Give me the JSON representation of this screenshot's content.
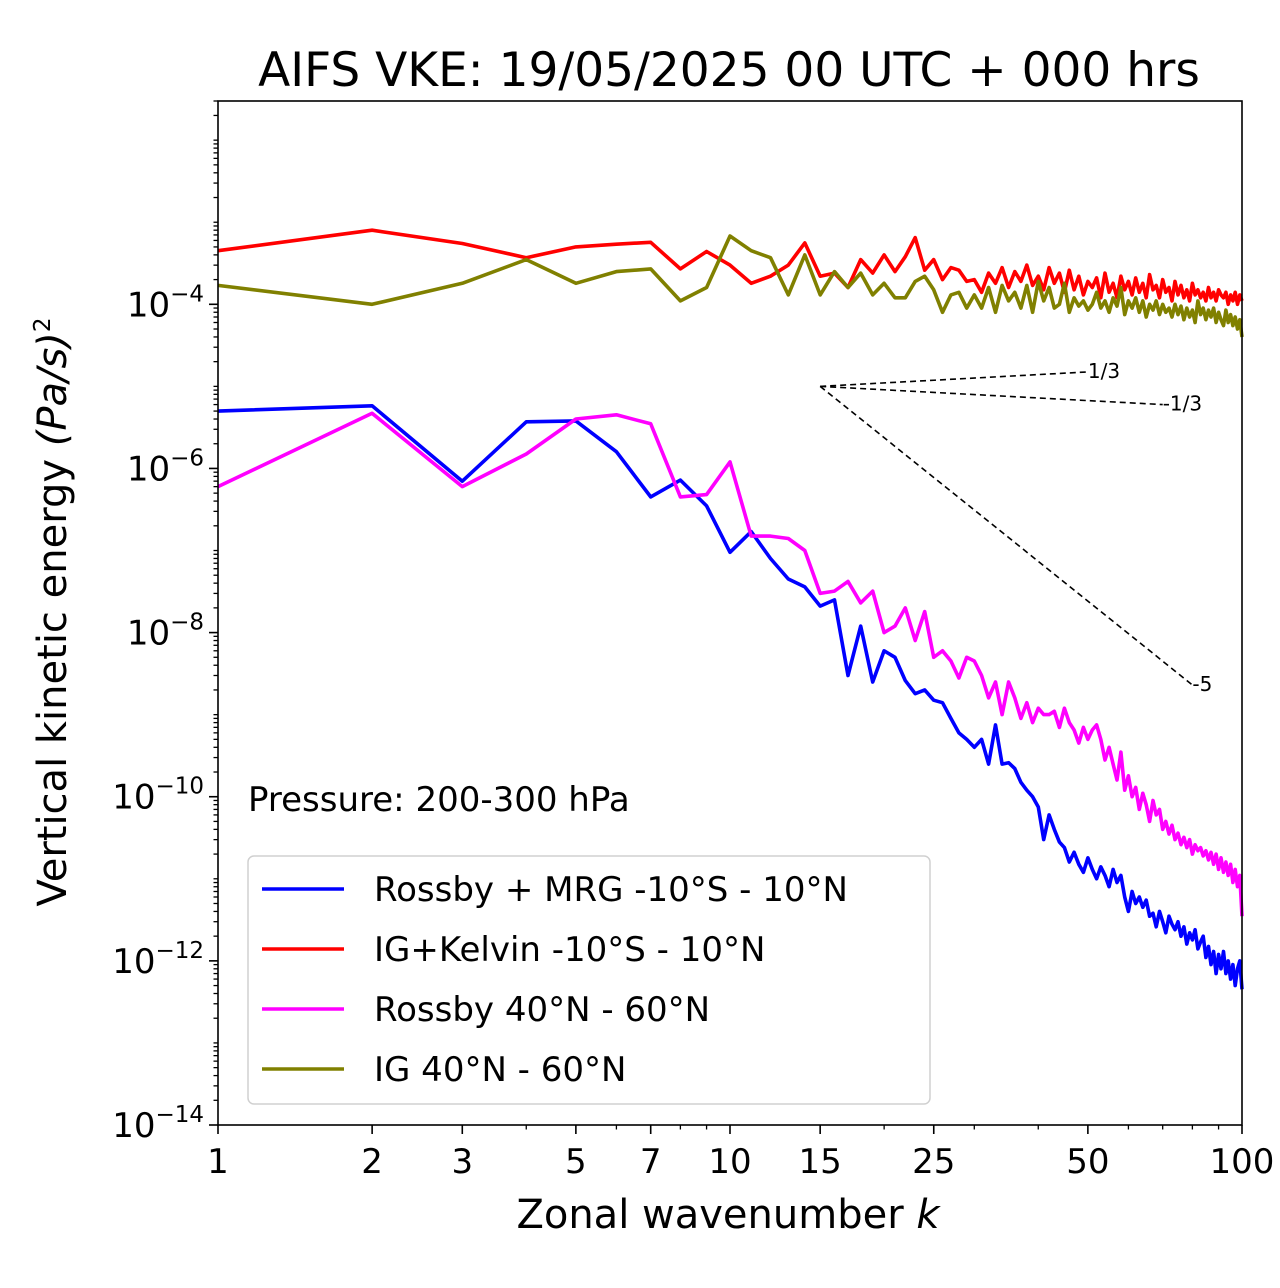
{
  "chart_data": {
    "type": "line",
    "title": "AIFS VKE: 19/05/2025 00 UTC + 000 hrs",
    "xlabel": "Zonal wavenumber",
    "xlabel_var": "k",
    "ylabel": "Vertical kinetic energy",
    "ylabel_unit": "(Pa/s)",
    "ylabel_exp": "2",
    "xscale": "log",
    "yscale": "log",
    "xlim": [
      1,
      100
    ],
    "ylim": [
      1e-14,
      0.03
    ],
    "xticks": [
      1,
      2,
      3,
      5,
      7,
      10,
      15,
      25,
      50,
      100
    ],
    "yticks": [
      {
        "base": "10",
        "exp": "−14",
        "value": 1e-14
      },
      {
        "base": "10",
        "exp": "−12",
        "value": 1e-12
      },
      {
        "base": "10",
        "exp": "−10",
        "value": 1e-10
      },
      {
        "base": "10",
        "exp": "−8",
        "value": 1e-08
      },
      {
        "base": "10",
        "exp": "−6",
        "value": 1e-06
      },
      {
        "base": "10",
        "exp": "−4",
        "value": 0.0001
      }
    ],
    "annotation": "Pressure: 200-300 hPa",
    "legend_position": "lower-left",
    "series": [
      {
        "name": "Rossby + MRG -10°S - 10°N",
        "color": "#0000ff",
        "x": [
          1,
          2,
          3,
          4,
          5,
          6,
          7,
          8,
          9,
          10,
          11,
          12,
          13,
          14,
          15,
          16,
          17,
          18,
          19,
          20,
          21,
          22,
          23,
          24,
          25,
          26,
          27,
          28,
          29,
          30,
          31,
          32,
          33,
          34,
          35,
          36,
          37,
          38,
          39,
          40,
          41,
          42,
          43,
          44,
          45,
          46,
          47,
          48,
          49,
          50,
          51,
          52,
          53,
          54,
          55,
          56,
          57,
          58,
          59,
          60,
          61,
          62,
          63,
          64,
          65,
          66,
          67,
          68,
          69,
          70,
          71,
          72,
          73,
          74,
          75,
          76,
          77,
          78,
          79,
          80,
          81,
          82,
          83,
          84,
          85,
          86,
          87,
          88,
          89,
          90,
          91,
          92,
          93,
          94,
          95,
          96,
          97,
          98,
          99,
          100
        ],
        "y": [
          5e-06,
          5.8e-06,
          7e-07,
          3.7e-06,
          3.8e-06,
          1.6e-06,
          4.5e-07,
          7.2e-07,
          3.5e-07,
          9.5e-08,
          1.7e-07,
          8e-08,
          4.5e-08,
          3.6e-08,
          2.1e-08,
          2.5e-08,
          3e-09,
          1.2e-08,
          2.5e-09,
          6e-09,
          5e-09,
          2.6e-09,
          1.8e-09,
          2e-09,
          1.5e-09,
          1.4e-09,
          9e-10,
          6e-10,
          5e-10,
          4e-10,
          5e-10,
          2.5e-10,
          7.5e-10,
          2.5e-10,
          2.6e-10,
          2.2e-10,
          1.5e-10,
          1.2e-10,
          1e-10,
          7.5e-11,
          3e-11,
          6e-11,
          4e-11,
          2.8e-11,
          2.4e-11,
          1.6e-11,
          2.1e-11,
          1.5e-11,
          1.2e-11,
          1.8e-11,
          1.3e-11,
          1e-11,
          1.4e-11,
          1.1e-11,
          8e-12,
          1.3e-11,
          9e-12,
          1.1e-11,
          6e-12,
          4e-12,
          7e-12,
          5e-12,
          6e-12,
          4.5e-12,
          5.5e-12,
          3.5e-12,
          3.8e-12,
          2.6e-12,
          4e-12,
          3e-12,
          2.2e-12,
          3.5e-12,
          2.8e-12,
          2.4e-12,
          3e-12,
          2e-12,
          2.6e-12,
          1.6e-12,
          2.2e-12,
          1.8e-12,
          2.4e-12,
          1.4e-12,
          1.7e-12,
          2e-12,
          1.1e-12,
          1.5e-12,
          9e-13,
          1.3e-12,
          7e-13,
          1.2e-12,
          8e-13,
          1.3e-12,
          7e-13,
          1e-12,
          6e-13,
          9e-13,
          5e-13,
          8e-13,
          1e-12,
          4.5e-13
        ]
      },
      {
        "name": "IG+Kelvin -10°S - 10°N",
        "color": "#ff0000",
        "x": [
          1,
          2,
          3,
          4,
          5,
          6,
          7,
          8,
          9,
          10,
          11,
          12,
          13,
          14,
          15,
          16,
          17,
          18,
          19,
          20,
          21,
          22,
          23,
          24,
          25,
          26,
          27,
          28,
          29,
          30,
          31,
          32,
          33,
          34,
          35,
          36,
          37,
          38,
          39,
          40,
          41,
          42,
          43,
          44,
          45,
          46,
          47,
          48,
          49,
          50,
          51,
          52,
          53,
          54,
          55,
          56,
          57,
          58,
          59,
          60,
          61,
          62,
          63,
          64,
          65,
          66,
          67,
          68,
          69,
          70,
          71,
          72,
          73,
          74,
          75,
          76,
          77,
          78,
          79,
          80,
          81,
          82,
          83,
          84,
          85,
          86,
          87,
          88,
          89,
          90,
          91,
          92,
          93,
          94,
          95,
          96,
          97,
          98,
          99,
          100
        ],
        "y": [
          0.00045,
          0.0008,
          0.00055,
          0.00037,
          0.0005,
          0.00054,
          0.00057,
          0.00027,
          0.00044,
          0.0003,
          0.00018,
          0.00022,
          0.0003,
          0.00056,
          0.00022,
          0.00024,
          0.00016,
          0.00035,
          0.00024,
          0.0004,
          0.00025,
          0.00038,
          0.00065,
          0.00026,
          0.00035,
          0.0002,
          0.00028,
          0.00026,
          0.00019,
          0.0002,
          0.00014,
          0.00024,
          0.00018,
          0.00028,
          0.00016,
          0.00025,
          0.00019,
          0.0003,
          0.00017,
          0.00022,
          0.00015,
          0.00028,
          0.00018,
          0.00024,
          0.00014,
          0.00026,
          0.00015,
          0.00022,
          0.00013,
          0.00019,
          0.00016,
          0.00021,
          0.00012,
          0.00024,
          0.00014,
          0.00018,
          0.00012,
          0.00022,
          0.00015,
          0.00019,
          0.00013,
          0.00021,
          0.00014,
          0.00018,
          0.00012,
          0.00023,
          0.00015,
          0.00017,
          0.00012,
          0.0002,
          0.00014,
          0.00016,
          0.00011,
          0.00019,
          0.00013,
          0.00017,
          0.00012,
          0.00015,
          0.00011,
          0.00018,
          0.00013,
          0.00015,
          0.00012,
          0.00014,
          0.00011,
          0.00016,
          0.00012,
          0.00014,
          0.00011,
          0.00015,
          0.00013,
          0.00012,
          0.00014,
          0.0001,
          0.00013,
          0.00011,
          0.00014,
          0.0001,
          0.00013,
          0.00011
        ]
      },
      {
        "name": "Rossby 40°N - 60°N",
        "color": "#ff00ff",
        "x": [
          1,
          2,
          3,
          4,
          5,
          6,
          7,
          8,
          9,
          10,
          11,
          12,
          13,
          14,
          15,
          16,
          17,
          18,
          19,
          20,
          21,
          22,
          23,
          24,
          25,
          26,
          27,
          28,
          29,
          30,
          31,
          32,
          33,
          34,
          35,
          36,
          37,
          38,
          39,
          40,
          41,
          42,
          43,
          44,
          45,
          46,
          47,
          48,
          49,
          50,
          51,
          52,
          53,
          54,
          55,
          56,
          57,
          58,
          59,
          60,
          61,
          62,
          63,
          64,
          65,
          66,
          67,
          68,
          69,
          70,
          71,
          72,
          73,
          74,
          75,
          76,
          77,
          78,
          79,
          80,
          81,
          82,
          83,
          84,
          85,
          86,
          87,
          88,
          89,
          90,
          91,
          92,
          93,
          94,
          95,
          96,
          97,
          98,
          99,
          100
        ],
        "y": [
          6e-07,
          4.7e-06,
          6e-07,
          1.5e-06,
          4e-06,
          4.5e-06,
          3.5e-06,
          4.5e-07,
          4.8e-07,
          1.2e-06,
          1.5e-07,
          1.5e-07,
          1.4e-07,
          1e-07,
          3e-08,
          3.2e-08,
          4.2e-08,
          2.3e-08,
          3.2e-08,
          1e-08,
          1.2e-08,
          2e-08,
          8e-09,
          1.8e-08,
          5e-09,
          6e-09,
          4.5e-09,
          2.8e-09,
          5e-09,
          4.5e-09,
          3e-09,
          1.6e-09,
          2.5e-09,
          1e-09,
          2.5e-09,
          1.6e-09,
          9e-10,
          1.4e-09,
          8e-10,
          1.2e-09,
          1e-09,
          1e-09,
          1.1e-09,
          7e-10,
          1.2e-09,
          8e-10,
          6.5e-10,
          4.5e-10,
          7e-10,
          5e-10,
          6.5e-10,
          7.5e-10,
          5e-10,
          2.8e-10,
          4e-10,
          2.5e-10,
          1.6e-10,
          3.5e-10,
          1.2e-10,
          1.8e-10,
          1e-10,
          1.3e-10,
          7e-11,
          1.1e-10,
          8e-11,
          5e-11,
          9e-11,
          6e-11,
          7e-11,
          4e-11,
          5e-11,
          3.5e-11,
          4.5e-11,
          3e-11,
          3.6e-11,
          2.6e-11,
          3.2e-11,
          2.4e-11,
          3e-11,
          2e-11,
          2.6e-11,
          2.2e-11,
          2.4e-11,
          1.9e-11,
          2.2e-11,
          1.7e-11,
          2.1e-11,
          1.5e-11,
          2e-11,
          1.3e-11,
          1.8e-11,
          1.2e-11,
          1.6e-11,
          1.1e-11,
          1.5e-11,
          9e-12,
          1.3e-11,
          8e-12,
          1.1e-11,
          3.5e-12
        ]
      },
      {
        "name": "IG 40°N - 60°N",
        "color": "#808000",
        "x": [
          1,
          2,
          3,
          4,
          5,
          6,
          7,
          8,
          9,
          10,
          11,
          12,
          13,
          14,
          15,
          16,
          17,
          18,
          19,
          20,
          21,
          22,
          23,
          24,
          25,
          26,
          27,
          28,
          29,
          30,
          31,
          32,
          33,
          34,
          35,
          36,
          37,
          38,
          39,
          40,
          41,
          42,
          43,
          44,
          45,
          46,
          47,
          48,
          49,
          50,
          51,
          52,
          53,
          54,
          55,
          56,
          57,
          58,
          59,
          60,
          61,
          62,
          63,
          64,
          65,
          66,
          67,
          68,
          69,
          70,
          71,
          72,
          73,
          74,
          75,
          76,
          77,
          78,
          79,
          80,
          81,
          82,
          83,
          84,
          85,
          86,
          87,
          88,
          89,
          90,
          91,
          92,
          93,
          94,
          95,
          96,
          97,
          98,
          99,
          100
        ],
        "y": [
          0.00017,
          0.0001,
          0.00018,
          0.00035,
          0.00018,
          0.00025,
          0.00027,
          0.00011,
          0.00016,
          0.00068,
          0.00045,
          0.00037,
          0.00013,
          0.0004,
          0.00013,
          0.00025,
          0.00016,
          0.00024,
          0.00013,
          0.00018,
          0.00012,
          0.00012,
          0.00019,
          0.00022,
          0.00015,
          8e-05,
          0.00013,
          0.00014,
          9e-05,
          0.00013,
          9e-05,
          0.00016,
          8e-05,
          0.00017,
          0.00011,
          0.00014,
          9e-05,
          0.00017,
          8e-05,
          0.00019,
          0.00011,
          0.00016,
          9e-05,
          0.0001,
          0.00018,
          8e-05,
          0.00012,
          9.5e-05,
          0.00011,
          8.5e-05,
          0.0001,
          0.00014,
          9e-05,
          0.00011,
          8e-05,
          0.00012,
          9.5e-05,
          0.00016,
          7.5e-05,
          0.00011,
          9e-05,
          0.00012,
          8e-05,
          0.00011,
          7e-05,
          0.0001,
          8.5e-05,
          0.00011,
          7.5e-05,
          0.0001,
          8e-05,
          9e-05,
          7e-05,
          0.0001,
          7.5e-05,
          9.5e-05,
          6.5e-05,
          9e-05,
          7e-05,
          8.5e-05,
          6e-05,
          0.00011,
          7.5e-05,
          9e-05,
          6.5e-05,
          8.5e-05,
          7e-05,
          9e-05,
          6e-05,
          8e-05,
          6.5e-05,
          5.5e-05,
          8.5e-05,
          6e-05,
          7.5e-05,
          5.5e-05,
          7e-05,
          5e-05,
          6.5e-05,
          4e-05
        ]
      }
    ],
    "slopes": [
      {
        "label": "1/3",
        "x": [
          15,
          50
        ],
        "y": [
          1e-05,
          1.5e-05
        ]
      },
      {
        "label": "-1/3",
        "x": [
          15,
          70
        ],
        "y": [
          1e-05,
          6e-06
        ]
      },
      {
        "label": "-5",
        "x": [
          15,
          80
        ],
        "y": [
          1e-05,
          2.3e-09
        ]
      }
    ]
  }
}
